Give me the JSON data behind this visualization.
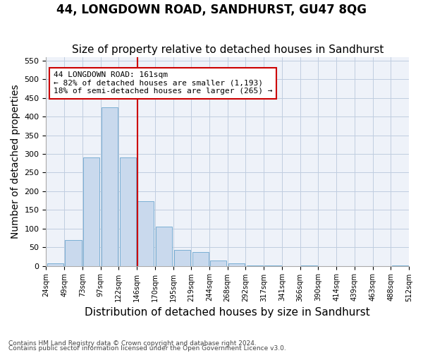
{
  "title": "44, LONGDOWN ROAD, SANDHURST, GU47 8QG",
  "subtitle": "Size of property relative to detached houses in Sandhurst",
  "xlabel": "Distribution of detached houses by size in Sandhurst",
  "ylabel": "Number of detached properties",
  "bin_labels": [
    "24sqm",
    "49sqm",
    "73sqm",
    "97sqm",
    "122sqm",
    "146sqm",
    "170sqm",
    "195sqm",
    "219sqm",
    "244sqm",
    "268sqm",
    "292sqm",
    "317sqm",
    "341sqm",
    "366sqm",
    "390sqm",
    "414sqm",
    "439sqm",
    "463sqm",
    "488sqm",
    "512sqm"
  ],
  "bar_values": [
    7,
    70,
    290,
    425,
    290,
    173,
    105,
    43,
    37,
    15,
    7,
    2,
    2,
    0,
    2,
    0,
    0,
    0,
    0,
    2
  ],
  "bar_color": "#c9d9ed",
  "bar_edge_color": "#7aafd4",
  "vline_color": "#cc0000",
  "annotation_text": "44 LONGDOWN ROAD: 161sqm\n← 82% of detached houses are smaller (1,193)\n18% of semi-detached houses are larger (265) →",
  "annotation_box_color": "#ffffff",
  "annotation_box_edge_color": "#cc0000",
  "ylim": [
    0,
    560
  ],
  "yticks": [
    0,
    50,
    100,
    150,
    200,
    250,
    300,
    350,
    400,
    450,
    500,
    550
  ],
  "footnote1": "Contains HM Land Registry data © Crown copyright and database right 2024.",
  "footnote2": "Contains public sector information licensed under the Open Government Licence v3.0.",
  "title_fontsize": 12,
  "subtitle_fontsize": 11,
  "xlabel_fontsize": 11,
  "ylabel_fontsize": 10,
  "bg_color": "#eef2f9"
}
